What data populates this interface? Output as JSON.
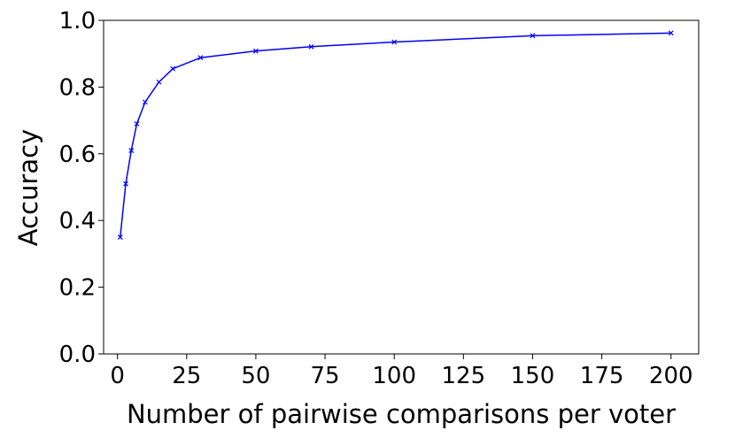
{
  "chart_data": {
    "type": "line",
    "title": "",
    "xlabel": "Number of pairwise comparisons per voter",
    "ylabel": "Accuracy",
    "xlim": [
      -5,
      210
    ],
    "ylim": [
      0.0,
      1.0
    ],
    "x_ticks": [
      0,
      25,
      50,
      75,
      100,
      125,
      150,
      175,
      200
    ],
    "y_ticks": [
      0.0,
      0.2,
      0.4,
      0.6,
      0.8,
      1.0
    ],
    "x_tick_labels": [
      "0",
      "25",
      "50",
      "75",
      "100",
      "125",
      "150",
      "175",
      "200"
    ],
    "y_tick_labels": [
      "0.0",
      "0.2",
      "0.4",
      "0.6",
      "0.8",
      "1.0"
    ],
    "grid": false,
    "legend": "none",
    "series": [
      {
        "color": "#0000ff",
        "marker": "x",
        "x": [
          1,
          3,
          5,
          7,
          10,
          15,
          20,
          30,
          50,
          70,
          100,
          150,
          200
        ],
        "y": [
          0.35,
          0.51,
          0.61,
          0.69,
          0.755,
          0.815,
          0.855,
          0.888,
          0.908,
          0.921,
          0.935,
          0.954,
          0.962
        ]
      }
    ]
  }
}
